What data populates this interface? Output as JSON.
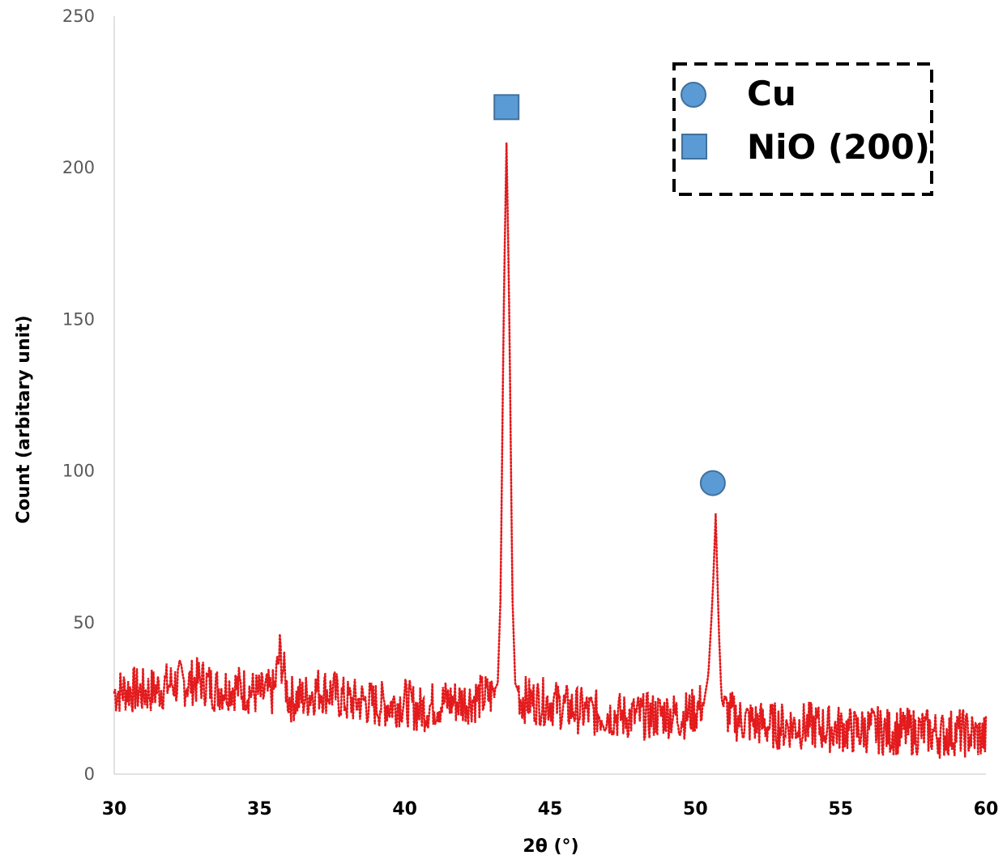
{
  "chart_data": {
    "type": "line",
    "title": "",
    "xlabel": "2θ (°)",
    "ylabel": "Count (arbitary unit)",
    "xlim": [
      30,
      60
    ],
    "ylim": [
      0,
      250
    ],
    "xticks": [
      30,
      35,
      40,
      45,
      50,
      55,
      60
    ],
    "yticks": [
      0,
      50,
      100,
      150,
      200,
      250
    ],
    "grid": false,
    "legend_position": "top-right",
    "series": [
      {
        "style": "dotted",
        "color": "#e31a1c",
        "x": [
          30.0,
          30.5,
          31.0,
          31.5,
          32.0,
          32.5,
          33.0,
          33.5,
          34.0,
          34.5,
          35.0,
          35.5,
          35.7,
          36.0,
          36.5,
          37.0,
          37.5,
          38.0,
          38.5,
          39.0,
          39.5,
          40.0,
          40.5,
          41.0,
          41.5,
          42.0,
          42.5,
          43.0,
          43.2,
          43.3,
          43.4,
          43.5,
          43.6,
          43.7,
          43.8,
          44.0,
          44.5,
          45.0,
          45.5,
          46.0,
          46.5,
          47.0,
          47.5,
          48.0,
          48.5,
          49.0,
          49.5,
          50.0,
          50.3,
          50.45,
          50.6,
          50.7,
          50.8,
          50.9,
          51.0,
          51.5,
          52.0,
          52.5,
          53.0,
          53.5,
          54.0,
          54.5,
          55.0,
          55.5,
          56.0,
          56.5,
          57.0,
          57.5,
          58.0,
          58.5,
          59.0,
          59.5,
          60.0
        ],
        "y": [
          27,
          28,
          27,
          28,
          30,
          30,
          31,
          28,
          29,
          28,
          26,
          27,
          40,
          25,
          25,
          28,
          27,
          24,
          24,
          23,
          23,
          24,
          21,
          23,
          24,
          24,
          25,
          26,
          30,
          60,
          150,
          208,
          150,
          60,
          30,
          25,
          24,
          24,
          22,
          21,
          20,
          20,
          19,
          19,
          19,
          20,
          19,
          21,
          24,
          33,
          60,
          86,
          50,
          25,
          21,
          18,
          17,
          16,
          16,
          16,
          16,
          15,
          15,
          14,
          15,
          14,
          14,
          14,
          14,
          13,
          14,
          13,
          12
        ]
      }
    ],
    "markers": [
      {
        "shape": "square",
        "x": 43.5,
        "y": 220
      },
      {
        "shape": "circle",
        "x": 50.6,
        "y": 96
      }
    ],
    "legend": [
      {
        "shape": "circle",
        "label": "Cu"
      },
      {
        "shape": "square",
        "label": "NiO (200)"
      }
    ]
  }
}
